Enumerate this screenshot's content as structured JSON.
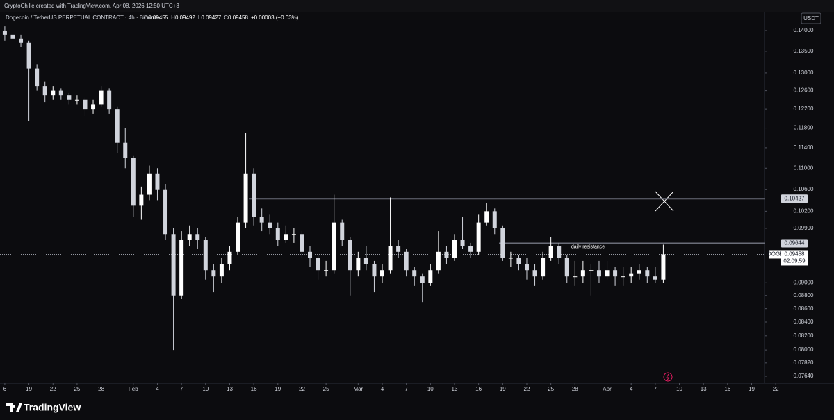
{
  "header": {
    "attribution": "CryptoChille created with TradingView.com, Apr 08, 2026 12:50 UTC+3"
  },
  "chart_data": {
    "type": "candlestick",
    "title": "Dogecoin / TetherUS PERPETUAL CONTRACT · 4h · Binance",
    "ohlc_legend": [
      {
        "label": "O",
        "value": 0.09455
      },
      {
        "label": "H",
        "value": 0.09492
      },
      {
        "label": "L",
        "value": 0.09427
      },
      {
        "label": "C",
        "value": 0.09458
      }
    ],
    "change": "+0.00003 (+0.03%)",
    "currency": "USDT",
    "x": [
      16,
      17,
      18,
      19,
      20,
      21,
      22,
      23,
      24,
      25,
      26,
      27,
      28,
      29,
      30,
      31,
      32,
      33,
      34,
      35,
      36,
      37,
      38,
      39,
      40,
      41,
      42,
      43,
      44,
      45,
      46,
      47,
      48,
      49,
      50,
      51,
      52,
      53,
      54,
      55,
      56,
      57,
      58,
      59,
      60,
      61,
      62,
      63,
      64,
      65,
      66,
      67,
      68,
      69,
      70,
      71,
      72,
      73,
      74,
      75,
      76,
      77,
      78,
      79,
      80,
      81,
      82,
      83,
      84,
      85,
      86,
      87,
      88,
      89,
      90,
      91,
      92,
      93,
      94,
      95,
      96,
      97,
      98
    ],
    "open": [
      0.14,
      0.139,
      0.138,
      0.137,
      0.131,
      0.127,
      0.125,
      0.126,
      0.125,
      0.124,
      0.124,
      0.122,
      0.123,
      0.126,
      0.122,
      0.115,
      0.112,
      0.103,
      0.105,
      0.109,
      0.106,
      0.098,
      0.088,
      0.097,
      0.098,
      0.097,
      0.092,
      0.091,
      0.093,
      0.095,
      0.1,
      0.109,
      0.101,
      0.1,
      0.099,
      0.097,
      0.098,
      0.098,
      0.095,
      0.094,
      0.092,
      0.092,
      0.1,
      0.097,
      0.092,
      0.094,
      0.093,
      0.091,
      0.092,
      0.096,
      0.095,
      0.092,
      0.091,
      0.09,
      0.092,
      0.095,
      0.094,
      0.097,
      0.096,
      0.095,
      0.1,
      0.102,
      0.099,
      0.094,
      0.094,
      0.093,
      0.092,
      0.091,
      0.094,
      0.096,
      0.094,
      0.091,
      0.091,
      0.092,
      0.092,
      0.091,
      0.092,
      0.091,
      0.091,
      0.0915,
      0.092,
      0.091,
      0.0905
    ],
    "high": [
      0.141,
      0.14,
      0.139,
      0.1375,
      0.132,
      0.128,
      0.127,
      0.1265,
      0.1255,
      0.125,
      0.1245,
      0.124,
      0.127,
      0.1265,
      0.1225,
      0.118,
      0.1125,
      0.1065,
      0.1105,
      0.11,
      0.107,
      0.099,
      0.0985,
      0.0995,
      0.099,
      0.0975,
      0.093,
      0.094,
      0.096,
      0.101,
      0.117,
      0.11,
      0.1025,
      0.1015,
      0.1,
      0.0995,
      0.099,
      0.0985,
      0.096,
      0.0945,
      0.0935,
      0.105,
      0.1005,
      0.0975,
      0.095,
      0.096,
      0.0935,
      0.093,
      0.1045,
      0.097,
      0.0955,
      0.0925,
      0.0915,
      0.093,
      0.0985,
      0.096,
      0.098,
      0.101,
      0.0965,
      0.1015,
      0.1035,
      0.1025,
      0.0995,
      0.095,
      0.0945,
      0.094,
      0.093,
      0.095,
      0.0975,
      0.0965,
      0.0945,
      0.0935,
      0.0935,
      0.093,
      0.0935,
      0.0935,
      0.0925,
      0.0925,
      0.0925,
      0.093,
      0.0925,
      0.0925,
      0.0962
    ],
    "low": [
      0.1375,
      0.137,
      0.136,
      0.1195,
      0.126,
      0.1235,
      0.124,
      0.124,
      0.123,
      0.123,
      0.1205,
      0.121,
      0.1225,
      0.121,
      0.113,
      0.11,
      0.101,
      0.1005,
      0.104,
      0.104,
      0.097,
      0.08,
      0.0875,
      0.096,
      0.0955,
      0.0905,
      0.0885,
      0.09,
      0.092,
      0.0945,
      0.099,
      0.0995,
      0.0985,
      0.098,
      0.096,
      0.0965,
      0.0965,
      0.094,
      0.0925,
      0.0905,
      0.091,
      0.0915,
      0.096,
      0.088,
      0.091,
      0.092,
      0.0885,
      0.09,
      0.0915,
      0.094,
      0.091,
      0.0895,
      0.087,
      0.0895,
      0.0915,
      0.093,
      0.0935,
      0.0955,
      0.094,
      0.0945,
      0.0995,
      0.098,
      0.0935,
      0.0925,
      0.092,
      0.0905,
      0.0895,
      0.0905,
      0.0935,
      0.093,
      0.09,
      0.0895,
      0.09,
      0.088,
      0.09,
      0.0905,
      0.0895,
      0.0895,
      0.09,
      0.0905,
      0.09,
      0.09,
      0.09
    ],
    "close": [
      0.139,
      0.138,
      0.137,
      0.131,
      0.127,
      0.125,
      0.126,
      0.125,
      0.124,
      0.124,
      0.122,
      0.123,
      0.126,
      0.122,
      0.115,
      0.112,
      0.103,
      0.105,
      0.109,
      0.106,
      0.098,
      0.088,
      0.097,
      0.098,
      0.097,
      0.092,
      0.091,
      0.093,
      0.095,
      0.1,
      0.109,
      0.101,
      0.1,
      0.099,
      0.097,
      0.098,
      0.098,
      0.095,
      0.094,
      0.092,
      0.092,
      0.1,
      0.097,
      0.092,
      0.094,
      0.093,
      0.091,
      0.092,
      0.096,
      0.095,
      0.092,
      0.091,
      0.09,
      0.092,
      0.095,
      0.094,
      0.097,
      0.096,
      0.095,
      0.1,
      0.102,
      0.099,
      0.094,
      0.094,
      0.093,
      0.092,
      0.091,
      0.094,
      0.096,
      0.094,
      0.091,
      0.091,
      0.092,
      0.092,
      0.091,
      0.092,
      0.091,
      0.091,
      0.0915,
      0.092,
      0.091,
      0.0905,
      0.09458
    ],
    "up_color": "#ffffff",
    "down_color": "#d1d4dc",
    "xlim": [
      15.4,
      110.6
    ],
    "xticks": [
      {
        "value": 16,
        "label": "6"
      },
      19,
      22,
      25,
      28,
      {
        "value": 32,
        "label": "Feb"
      },
      {
        "value": 35,
        "label": "4"
      },
      {
        "value": 38,
        "label": "7"
      },
      {
        "value": 41,
        "label": "10"
      },
      {
        "value": 44,
        "label": "13"
      },
      {
        "value": 47,
        "label": "16"
      },
      {
        "value": 50,
        "label": "19"
      },
      {
        "value": 53,
        "label": "22"
      },
      {
        "value": 56,
        "label": "25"
      },
      {
        "value": 60,
        "label": "Mar"
      },
      {
        "value": 63,
        "label": "4"
      },
      {
        "value": 66,
        "label": "7"
      },
      {
        "value": 69,
        "label": "10"
      },
      {
        "value": 72,
        "label": "13"
      },
      {
        "value": 75,
        "label": "16"
      },
      {
        "value": 78,
        "label": "19"
      },
      {
        "value": 81,
        "label": "22"
      },
      {
        "value": 84,
        "label": "25"
      },
      {
        "value": 87,
        "label": "28"
      },
      {
        "value": 91,
        "label": "Apr"
      },
      {
        "value": 94,
        "label": "4"
      },
      {
        "value": 97,
        "label": "7"
      },
      {
        "value": 100,
        "label": "10"
      },
      {
        "value": 103,
        "label": "13"
      },
      {
        "value": 106,
        "label": "16"
      },
      {
        "value": 109,
        "label": "19"
      },
      {
        "value": 112,
        "label": "22"
      }
    ],
    "ylim": [
      0.0752,
      0.1424
    ],
    "log_scale": true,
    "yticks": [
      {
        "value": 0.14,
        "label": "0.14000"
      },
      {
        "value": 0.135,
        "label": "0.13500"
      },
      {
        "value": 0.13,
        "label": "0.13000"
      },
      {
        "value": 0.126,
        "label": "0.12600"
      },
      {
        "value": 0.122,
        "label": "0.12200"
      },
      {
        "value": 0.118,
        "label": "0.11800"
      },
      {
        "value": 0.114,
        "label": "0.11400"
      },
      {
        "value": 0.11,
        "label": "0.11000"
      },
      {
        "value": 0.106,
        "label": "0.10600"
      },
      {
        "value": 0.102,
        "label": "0.10200"
      },
      {
        "value": 0.099,
        "label": "0.09900"
      },
      {
        "value": 0.09,
        "label": "0.09000"
      },
      {
        "value": 0.088,
        "label": "0.08800"
      },
      {
        "value": 0.086,
        "label": "0.08600"
      },
      {
        "value": 0.084,
        "label": "0.08400"
      },
      {
        "value": 0.082,
        "label": "0.08200"
      },
      {
        "value": 0.08,
        "label": "0.08000"
      },
      {
        "value": 0.0782,
        "label": "0.07820"
      },
      {
        "value": 0.0764,
        "label": "0.07640"
      }
    ],
    "levels": [
      {
        "value": 0.10427,
        "color": "#6a6d78"
      },
      {
        "value": 0.09644,
        "annotation": "daily resistance",
        "color": "#6a6d78"
      }
    ],
    "last_price": {
      "symbol": "DOGEUSDT.P",
      "value": 0.09458,
      "countdown": "02:09:59"
    },
    "grid": false
  },
  "footer": {
    "logo": "TradingView"
  }
}
